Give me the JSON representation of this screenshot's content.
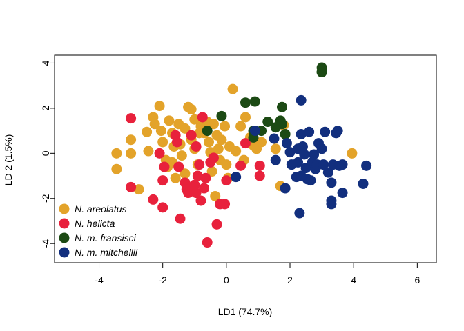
{
  "chart_data": {
    "type": "scatter",
    "title": "",
    "xlabel": "LD1 (74.7%)",
    "ylabel": "LD 2 (1.5%)",
    "xlim": [
      -5.4,
      6.6
    ],
    "ylim": [
      -4.85,
      4.35
    ],
    "xticks": [
      "-4",
      "-2",
      "0",
      "2",
      "4",
      "6"
    ],
    "yticks": [
      "-4",
      "-2",
      "0",
      "2",
      "4"
    ],
    "grid": false,
    "legend_position": "bottom-left",
    "series": [
      {
        "name": "N. areolatus",
        "color": "#E3A32A",
        "points": [
          [
            -3.45,
            0.0
          ],
          [
            -3.45,
            -0.7
          ],
          [
            -3.0,
            0.6
          ],
          [
            -3.0,
            0.0
          ],
          [
            -2.75,
            -1.6
          ],
          [
            -2.5,
            0.95
          ],
          [
            -2.45,
            0.1
          ],
          [
            -2.3,
            1.6
          ],
          [
            -2.25,
            1.3
          ],
          [
            -2.1,
            2.1
          ],
          [
            -2.05,
            1.0
          ],
          [
            -2.0,
            0.5
          ],
          [
            -1.9,
            -0.3
          ],
          [
            -1.85,
            -0.6
          ],
          [
            -1.8,
            1.45
          ],
          [
            -1.7,
            0.9
          ],
          [
            -1.65,
            0.3
          ],
          [
            -1.6,
            -1.1
          ],
          [
            -1.5,
            1.3
          ],
          [
            -1.45,
            0.4
          ],
          [
            -1.4,
            -0.1
          ],
          [
            -1.3,
            1.1
          ],
          [
            -1.2,
            2.05
          ],
          [
            -1.1,
            1.95
          ],
          [
            -1.1,
            0.6
          ],
          [
            -1.0,
            1.5
          ],
          [
            -1.0,
            0.2
          ],
          [
            -0.9,
            -0.5
          ],
          [
            -0.8,
            1.2
          ],
          [
            -0.7,
            0.9
          ],
          [
            -0.6,
            1.4
          ],
          [
            -0.55,
            0.5
          ],
          [
            -0.5,
            0.05
          ],
          [
            -0.45,
            -0.8
          ],
          [
            -0.4,
            1.3
          ],
          [
            -0.35,
            -1.9
          ],
          [
            -0.3,
            0.8
          ],
          [
            -0.2,
            -0.3
          ],
          [
            -0.15,
            0.6
          ],
          [
            -0.05,
            1.2
          ],
          [
            0.0,
            -0.5
          ],
          [
            0.05,
            -1.1
          ],
          [
            0.1,
            0.3
          ],
          [
            0.2,
            2.85
          ],
          [
            0.3,
            0.1
          ],
          [
            0.45,
            1.2
          ],
          [
            0.55,
            -0.3
          ],
          [
            0.6,
            1.6
          ],
          [
            0.75,
            0.7
          ],
          [
            0.85,
            0.35
          ],
          [
            0.95,
            0.2
          ],
          [
            1.1,
            0.5
          ],
          [
            1.55,
            0.2
          ],
          [
            1.7,
            -1.45
          ],
          [
            1.8,
            1.25
          ],
          [
            3.95,
            0.0
          ],
          [
            -1.3,
            -0.9
          ],
          [
            -0.85,
            0.9
          ],
          [
            -0.25,
            0.2
          ],
          [
            -1.7,
            -0.4
          ]
        ]
      },
      {
        "name": "N. helicta",
        "color": "#E8213C",
        "points": [
          [
            -3.0,
            1.55
          ],
          [
            -3.0,
            -1.5
          ],
          [
            -2.3,
            -2.05
          ],
          [
            -2.1,
            0.0
          ],
          [
            -2.0,
            -2.4
          ],
          [
            -2.0,
            -1.2
          ],
          [
            -1.95,
            -0.6
          ],
          [
            -1.6,
            0.8
          ],
          [
            -1.55,
            0.5
          ],
          [
            -1.5,
            -0.6
          ],
          [
            -1.45,
            -2.9
          ],
          [
            -1.3,
            -1.3
          ],
          [
            -1.25,
            -1.6
          ],
          [
            -1.15,
            -1.7
          ],
          [
            -1.1,
            0.8
          ],
          [
            -1.0,
            -1.4
          ],
          [
            -0.95,
            0.3
          ],
          [
            -0.9,
            -1.0
          ],
          [
            -0.85,
            -0.5
          ],
          [
            -0.8,
            -2.1
          ],
          [
            -0.75,
            1.6
          ],
          [
            -0.7,
            -1.55
          ],
          [
            -0.65,
            -1.1
          ],
          [
            -0.6,
            -3.95
          ],
          [
            -0.5,
            -0.4
          ],
          [
            -0.4,
            -0.2
          ],
          [
            -0.3,
            -3.15
          ],
          [
            -0.2,
            -2.25
          ],
          [
            -0.05,
            -2.25
          ],
          [
            0.0,
            -1.2
          ],
          [
            0.45,
            -0.55
          ],
          [
            0.6,
            0.45
          ],
          [
            1.05,
            -0.55
          ],
          [
            1.05,
            -1.0
          ],
          [
            -1.2,
            -1.75
          ],
          [
            -0.95,
            -1.75
          ]
        ]
      },
      {
        "name": "N. m. fransisci",
        "color": "#1C4A14",
        "points": [
          [
            -0.6,
            1.0
          ],
          [
            -0.15,
            1.65
          ],
          [
            0.6,
            2.25
          ],
          [
            0.9,
            2.3
          ],
          [
            0.85,
            1.0
          ],
          [
            0.85,
            0.7
          ],
          [
            1.1,
            1.0
          ],
          [
            1.3,
            1.4
          ],
          [
            1.55,
            1.15
          ],
          [
            1.7,
            1.45
          ],
          [
            1.75,
            2.05
          ],
          [
            1.75,
            1.3
          ],
          [
            1.85,
            0.85
          ],
          [
            3.0,
            3.6
          ],
          [
            3.0,
            3.8
          ],
          [
            3.0,
            3.6
          ]
        ]
      },
      {
        "name": "N. m. mitchellii",
        "color": "#122F7E",
        "points": [
          [
            0.3,
            -1.05
          ],
          [
            0.9,
            1.0
          ],
          [
            1.5,
            0.65
          ],
          [
            1.55,
            -0.3
          ],
          [
            1.85,
            -1.55
          ],
          [
            1.9,
            0.45
          ],
          [
            2.0,
            0.05
          ],
          [
            2.05,
            -0.5
          ],
          [
            2.2,
            -1.05
          ],
          [
            2.25,
            0.2
          ],
          [
            2.25,
            -0.4
          ],
          [
            2.3,
            -2.65
          ],
          [
            2.35,
            2.35
          ],
          [
            2.35,
            0.85
          ],
          [
            2.4,
            0.3
          ],
          [
            2.45,
            -0.05
          ],
          [
            2.5,
            -0.65
          ],
          [
            2.55,
            -1.15
          ],
          [
            2.6,
            0.95
          ],
          [
            2.7,
            -0.4
          ],
          [
            2.75,
            -0.05
          ],
          [
            2.8,
            -0.7
          ],
          [
            2.85,
            -0.5
          ],
          [
            2.9,
            0.45
          ],
          [
            3.0,
            0.2
          ],
          [
            3.05,
            -0.5
          ],
          [
            3.1,
            0.95
          ],
          [
            3.2,
            -0.85
          ],
          [
            3.3,
            -2.1
          ],
          [
            3.3,
            -2.25
          ],
          [
            3.3,
            -1.3
          ],
          [
            3.35,
            -0.5
          ],
          [
            3.45,
            0.9
          ],
          [
            3.5,
            1.0
          ],
          [
            3.55,
            -0.55
          ],
          [
            3.65,
            -0.5
          ],
          [
            3.65,
            -1.75
          ],
          [
            4.3,
            -1.35
          ],
          [
            4.4,
            -0.55
          ],
          [
            2.35,
            -1.0
          ],
          [
            2.65,
            -1.2
          ]
        ]
      }
    ]
  }
}
